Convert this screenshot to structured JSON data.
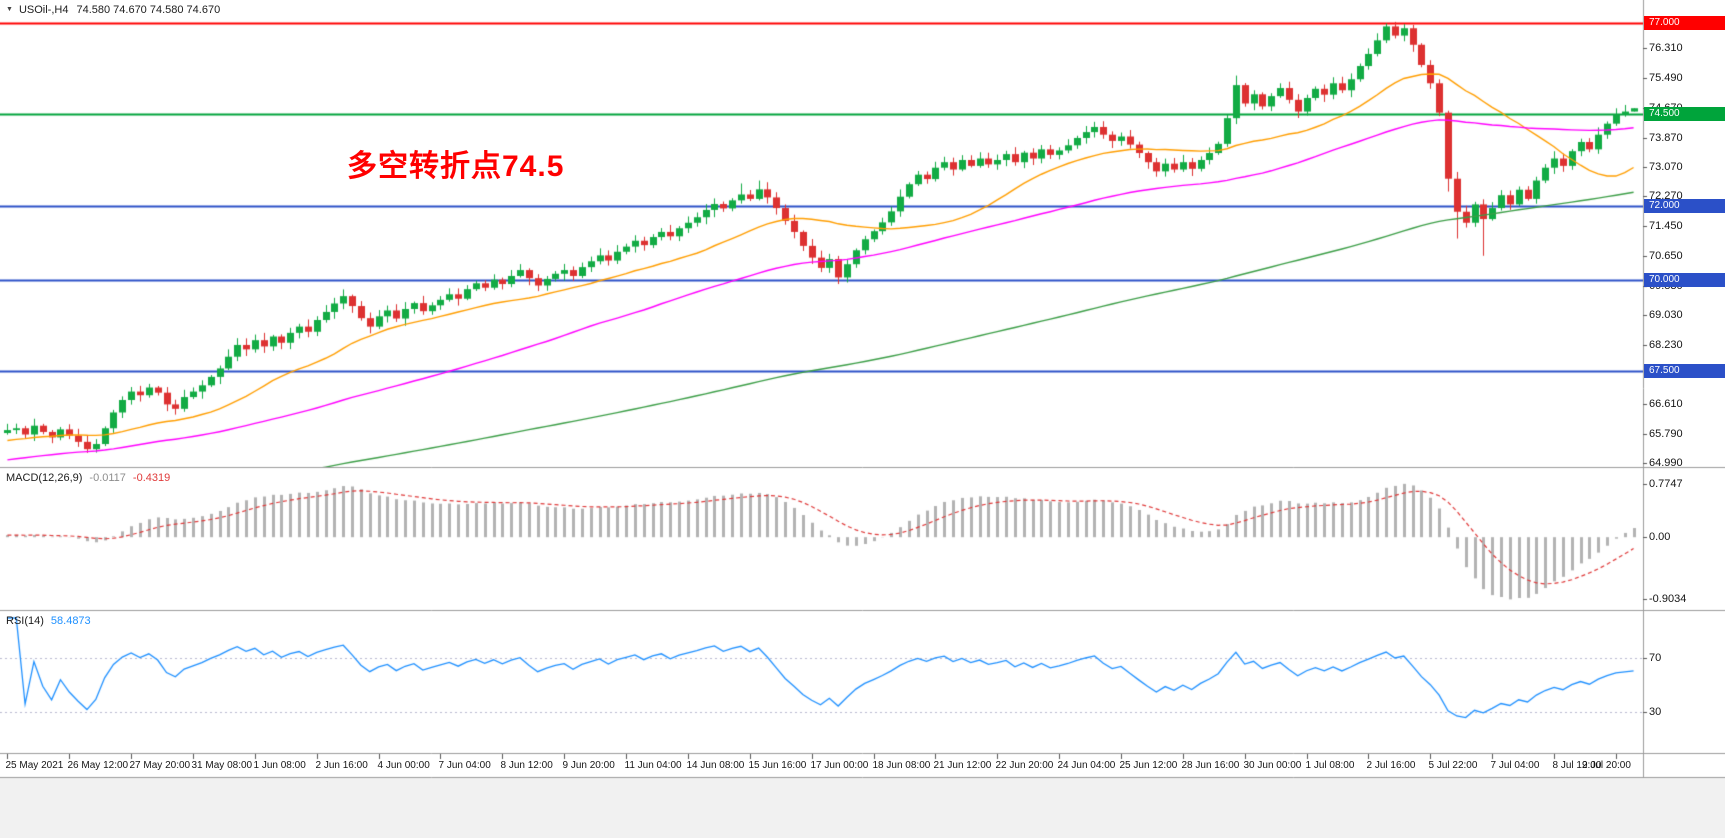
{
  "header": {
    "expand_icon": "▼",
    "symbol_period": "USOil-,H4",
    "ohlc": "74.580 74.670 74.580 74.670"
  },
  "annotation": {
    "text": "多空转折点74.5",
    "color": "#ff0000"
  },
  "chart_data": {
    "type": "candlestick",
    "title": "USOil- H4",
    "symbol": "USOil-",
    "timeframe": "H4",
    "current_bar": {
      "open": 74.58,
      "high": 74.67,
      "low": 74.58,
      "close": 74.67
    },
    "up_color": "#12ab44",
    "down_color": "#dd3131",
    "first_open": 65.82,
    "closes": [
      65.9,
      65.95,
      65.78,
      66.02,
      65.85,
      65.7,
      65.92,
      65.75,
      65.58,
      65.38,
      65.52,
      65.95,
      66.38,
      66.72,
      66.95,
      66.85,
      67.06,
      66.92,
      66.6,
      66.48,
      66.8,
      66.95,
      67.12,
      67.35,
      67.58,
      67.9,
      68.22,
      68.1,
      68.35,
      68.18,
      68.45,
      68.28,
      68.55,
      68.72,
      68.58,
      68.9,
      69.12,
      69.35,
      69.55,
      69.28,
      68.95,
      68.72,
      69.0,
      69.16,
      68.94,
      69.2,
      69.36,
      69.14,
      69.3,
      69.45,
      69.6,
      69.48,
      69.74,
      69.9,
      69.78,
      70.0,
      69.88,
      70.1,
      70.26,
      70.04,
      69.84,
      70.02,
      70.16,
      70.26,
      70.1,
      70.34,
      70.5,
      70.66,
      70.52,
      70.76,
      70.9,
      71.06,
      70.94,
      71.16,
      71.3,
      71.18,
      71.4,
      71.55,
      71.7,
      71.9,
      72.06,
      71.94,
      72.16,
      72.32,
      72.2,
      72.46,
      72.24,
      71.95,
      71.6,
      71.3,
      70.92,
      70.6,
      70.32,
      70.56,
      70.06,
      70.42,
      70.8,
      71.1,
      71.32,
      71.56,
      71.86,
      72.26,
      72.6,
      72.86,
      72.74,
      73.05,
      73.2,
      73.0,
      73.26,
      73.1,
      73.3,
      73.14,
      73.26,
      73.42,
      73.2,
      73.46,
      73.3,
      73.55,
      73.4,
      73.52,
      73.66,
      73.86,
      74.02,
      74.16,
      73.95,
      73.78,
      73.9,
      73.68,
      73.45,
      73.2,
      72.95,
      73.16,
      73.0,
      73.2,
      73.02,
      73.26,
      73.45,
      73.7,
      74.4,
      75.3,
      74.8,
      75.05,
      74.72,
      75.0,
      75.22,
      74.9,
      74.58,
      74.95,
      75.2,
      75.04,
      75.35,
      75.16,
      75.46,
      75.82,
      76.15,
      76.52,
      76.9,
      76.65,
      76.85,
      76.4,
      75.85,
      75.35,
      74.55,
      72.75,
      71.85,
      71.55,
      72.05,
      71.65,
      71.95,
      72.3,
      72.05,
      72.45,
      72.2,
      72.7,
      73.05,
      73.3,
      73.1,
      73.5,
      73.75,
      73.55,
      73.95,
      74.25,
      74.5,
      74.58,
      74.67
    ],
    "hl_overrides": {
      "9": {
        "l": 65.28
      },
      "83": {
        "h": 72.62
      },
      "85": {
        "h": 72.7
      },
      "94": {
        "l": 69.88
      },
      "123": {
        "h": 74.3
      },
      "139": {
        "h": 75.56
      },
      "156": {
        "h": 76.98
      },
      "158": {
        "h": 76.96
      },
      "163": {
        "l": 72.4
      },
      "164": {
        "l": 71.12
      },
      "167": {
        "l": 70.65
      },
      "184": {
        "h": 74.67,
        "l": 74.58
      }
    },
    "price_axis": {
      "top_price": 77.32,
      "bottom_price": 64.84,
      "ticks": [
        "76.310",
        "75.490",
        "74.670",
        "73.870",
        "73.070",
        "72.270",
        "71.450",
        "70.650",
        "69.830",
        "69.030",
        "68.230",
        "66.610",
        "65.790",
        "64.990"
      ]
    },
    "horizontal_lines": [
      {
        "price": 77.0,
        "label": "77.000",
        "color": "#ff0000",
        "width": 2
      },
      {
        "price": 74.5,
        "label": "74.500",
        "color": "#00a43b",
        "width": 2
      },
      {
        "price": 72.0,
        "label": "72.000",
        "color": "#2b50c8",
        "width": 2
      },
      {
        "price": 70.0,
        "label": "70.000",
        "color": "#2b50c8",
        "width": 2
      },
      {
        "price": 67.5,
        "label": "67.500",
        "color": "#2b50c8",
        "width": 2
      }
    ],
    "moving_averages": [
      {
        "period": 20,
        "color": "#ff9e00"
      },
      {
        "period": 55,
        "color": "#ff00ff"
      },
      {
        "period": 150,
        "color": "#3c9e47"
      }
    ],
    "candles_per_label": 7,
    "time_labels": [
      "25 May 2021",
      "26 May 12:00",
      "27 May 20:00",
      "31 May 08:00",
      "1 Jun 08:00",
      "2 Jun 16:00",
      "4 Jun 00:00",
      "7 Jun 04:00",
      "8 Jun 12:00",
      "9 Jun 20:00",
      "11 Jun 04:00",
      "14 Jun 08:00",
      "15 Jun 16:00",
      "17 Jun 00:00",
      "18 Jun 08:00",
      "21 Jun 12:00",
      "22 Jun 20:00",
      "24 Jun 04:00",
      "25 Jun 12:00",
      "28 Jun 16:00",
      "30 Jun 00:00",
      "1 Jul 08:00",
      "2 Jul 16:00",
      "5 Jul 22:00",
      "7 Jul 04:00",
      "8 Jul 12:00",
      "9 Jul 20:00"
    ],
    "macd": {
      "label": "MACD(12,26,9)",
      "main_value": "-0.0117",
      "signal_value": "-0.4319",
      "axis": [
        {
          "label": "0.7747",
          "value": 0.7747
        },
        {
          "label": "0.00",
          "value": 0
        },
        {
          "label": "-0.9034",
          "value": -0.9034
        }
      ],
      "histogram_color": "#b3b3b3",
      "signal_color": "#e03a3a"
    },
    "rsi": {
      "label": "RSI(14)",
      "value": "58.4873",
      "color": "#1e90ff",
      "level_color": "#b9b9cf",
      "levels": [
        {
          "label": "70",
          "value": 70
        },
        {
          "label": "30",
          "value": 30
        }
      ]
    }
  }
}
